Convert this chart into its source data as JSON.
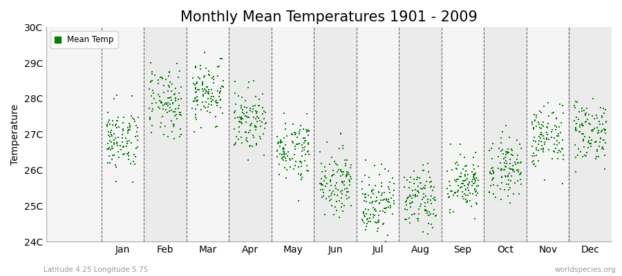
{
  "title": "Monthly Mean Temperatures 1901 - 2009",
  "ylabel": "Temperature",
  "subtitle": "Latitude 4.25 Longitude 5.75",
  "watermark": "worldspecies.org",
  "months": [
    "Jan",
    "Feb",
    "Mar",
    "Apr",
    "May",
    "Jun",
    "Jul",
    "Aug",
    "Sep",
    "Oct",
    "Nov",
    "Dec"
  ],
  "monthly_means": [
    26.85,
    27.85,
    28.2,
    27.4,
    26.6,
    25.7,
    25.1,
    25.15,
    25.6,
    26.1,
    26.9,
    27.1
  ],
  "monthly_stds": [
    0.45,
    0.48,
    0.45,
    0.42,
    0.42,
    0.45,
    0.48,
    0.45,
    0.42,
    0.42,
    0.45,
    0.45
  ],
  "ylim_min": 24.0,
  "ylim_max": 30.0,
  "yticks": [
    24,
    25,
    26,
    27,
    28,
    29,
    30
  ],
  "ytick_labels": [
    "24C",
    "25C",
    "26C",
    "27C",
    "28C",
    "29C",
    "30C"
  ],
  "dot_color": "#008000",
  "dot_size": 3,
  "legend_label": "Mean Temp",
  "bg_color_odd": "#ebebeb",
  "bg_color_even": "#f5f5f5",
  "years": 109,
  "title_fontsize": 15,
  "axis_fontsize": 10,
  "xlim_min": -0.8,
  "xlim_max": 12.5
}
